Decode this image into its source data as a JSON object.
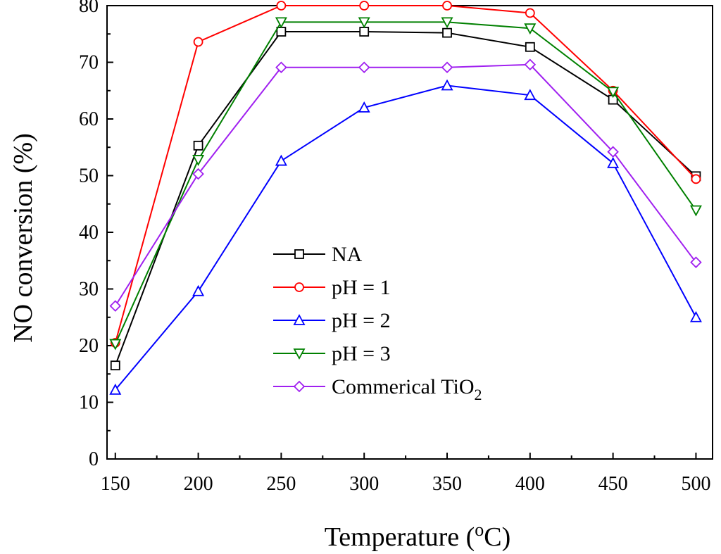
{
  "chart_data": {
    "type": "line",
    "x": [
      150,
      200,
      250,
      300,
      350,
      400,
      450,
      500
    ],
    "xlabel": {
      "prefix": "Temperature (",
      "sup": "o",
      "suffix": "C)"
    },
    "ylabel": "NO conversion (%)",
    "xlim": [
      145,
      510
    ],
    "ylim": [
      0,
      80
    ],
    "xticks": [
      150,
      200,
      250,
      300,
      350,
      400,
      450,
      500
    ],
    "yticks": [
      0,
      10,
      20,
      30,
      40,
      50,
      60,
      70,
      80
    ],
    "grid": false,
    "legend_position": "center-left",
    "series": [
      {
        "name": "NA",
        "color": "#000000",
        "marker": "square",
        "values": [
          16.5,
          55.3,
          75.4,
          75.4,
          75.2,
          72.7,
          63.4,
          49.9
        ]
      },
      {
        "name": "pH = 1",
        "color": "#ff0000",
        "marker": "circle",
        "values": [
          20.5,
          73.6,
          80.0,
          80.0,
          80.0,
          78.7,
          65.0,
          49.4
        ]
      },
      {
        "name": "pH = 2",
        "color": "#0000ff",
        "marker": "triangle-up",
        "values": [
          12.2,
          29.6,
          52.6,
          62.0,
          65.9,
          64.2,
          52.2,
          25.0
        ]
      },
      {
        "name": "pH = 3",
        "color": "#008000",
        "marker": "triangle-down",
        "values": [
          20.3,
          52.8,
          77.1,
          77.1,
          77.1,
          76.0,
          64.8,
          43.9
        ]
      },
      {
        "name": "Commerical TiO",
        "name_sub": "2",
        "color": "#a020f0",
        "marker": "diamond",
        "values": [
          27.0,
          50.3,
          69.1,
          69.1,
          69.1,
          69.6,
          54.2,
          34.7
        ]
      }
    ]
  }
}
